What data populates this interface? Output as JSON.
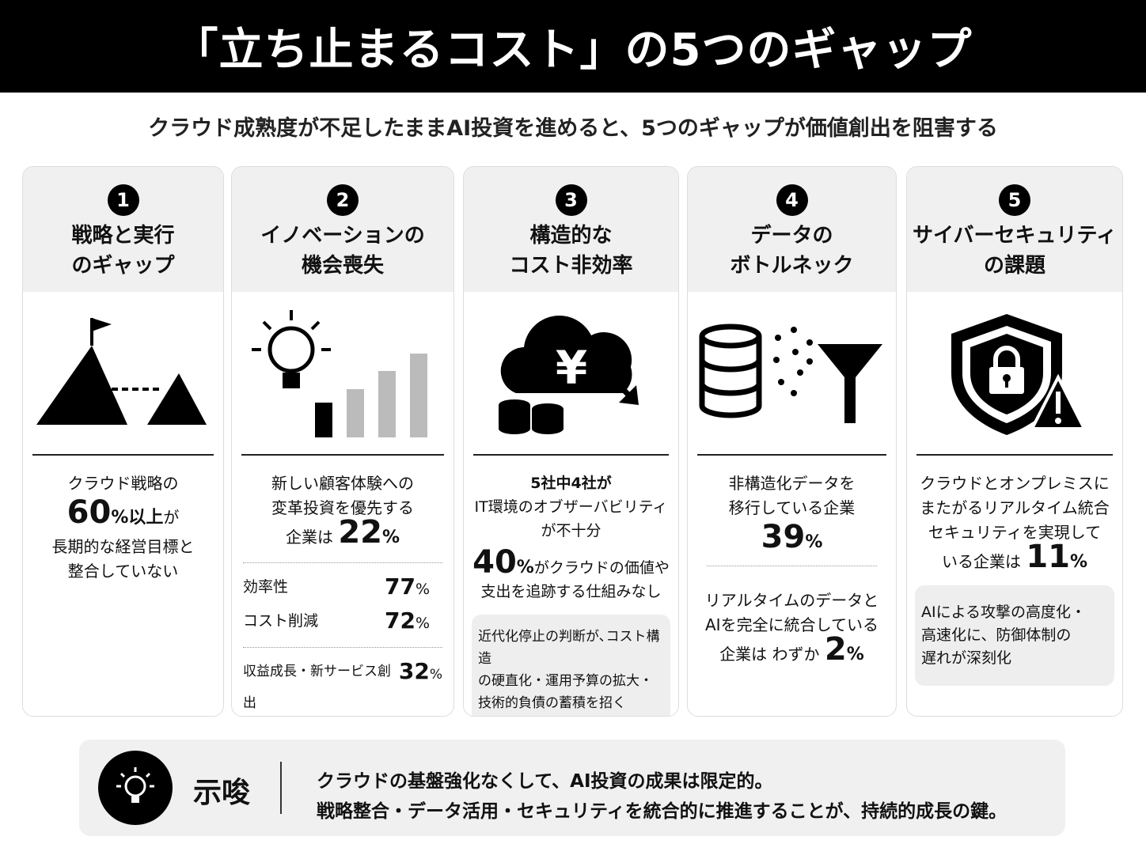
{
  "title": "「立ち止まるコスト」の5つのギャップ",
  "subtitle": "クラウド成熟度が不足したままAI投資を進めると、5つのギャップが価値創出を阻害する",
  "cards": [
    {
      "num": "1",
      "title1": "戦略と実行",
      "title2": "のギャップ",
      "icon": "mountain-flag-icon",
      "l1": "クラウド戦略の",
      "big": "60",
      "pct": "%以上",
      "suffix": "が",
      "l2": "長期的な経営目標と",
      "l3": "整合していない"
    },
    {
      "num": "2",
      "title1": "イノベーションの",
      "title2": "機会喪失",
      "icon": "lightbulb-bar-chart-icon",
      "l1": "新しい顧客体験への",
      "l2": "変革投資を優先する",
      "pre": "企業は",
      "big": "22",
      "pct": "%",
      "rows": [
        {
          "label": "効率性",
          "value": "77",
          "pct": "%"
        },
        {
          "label": "コスト削減",
          "value": "72",
          "pct": "%"
        },
        {
          "label": "収益成長・新サービス創出",
          "value": "32",
          "pct": "%"
        }
      ]
    },
    {
      "num": "3",
      "title1": "構造的な",
      "title2": "コスト非効率",
      "icon": "cloud-yen-icon",
      "l1": "5社中4社が",
      "l2": "IT環境のオブザーバビリティ",
      "l3": "が不十分",
      "big": "40",
      "pct": "%",
      "suffix": "がクラウドの価値や",
      "l4": "支出を追跡する仕組みなし",
      "note": [
        "近代化停止の判断が､コスト構造",
        "の硬直化・運用予算の拡大・",
        "技術的負債の蓄積を招く"
      ]
    },
    {
      "num": "4",
      "title1": "データの",
      "title2": "ボトルネック",
      "icon": "database-funnel-icon",
      "l1": "非構造化データを",
      "l2": "移行している企業",
      "big": "39",
      "pct": "%",
      "l3": "リアルタイムのデータと",
      "l4": "AIを完全に統合している",
      "pre": "企業は わずか",
      "big2": "2",
      "pct2": "%"
    },
    {
      "num": "5",
      "title1": "サイバーセキュリティ",
      "title2": "の課題",
      "icon": "shield-lock-warning-icon",
      "l1": "クラウドとオンプレミスに",
      "l2": "またがるリアルタイム統合",
      "l3": "セキュリティを実現して",
      "pre": "いる企業は",
      "big": "11",
      "pct": "%",
      "note": [
        "AIによる攻撃の高度化・",
        "高速化に、防御体制の",
        "遅れが深刻化"
      ]
    }
  ],
  "implication": {
    "label": "示唆",
    "line1": "クラウドの基盤強化なくして、AI投資の成果は限定的。",
    "line2": "戦略整合・データ活用・セキュリティを統合的に推進することが、持続的成長の鍵。",
    "icon": "lightbulb-icon"
  }
}
